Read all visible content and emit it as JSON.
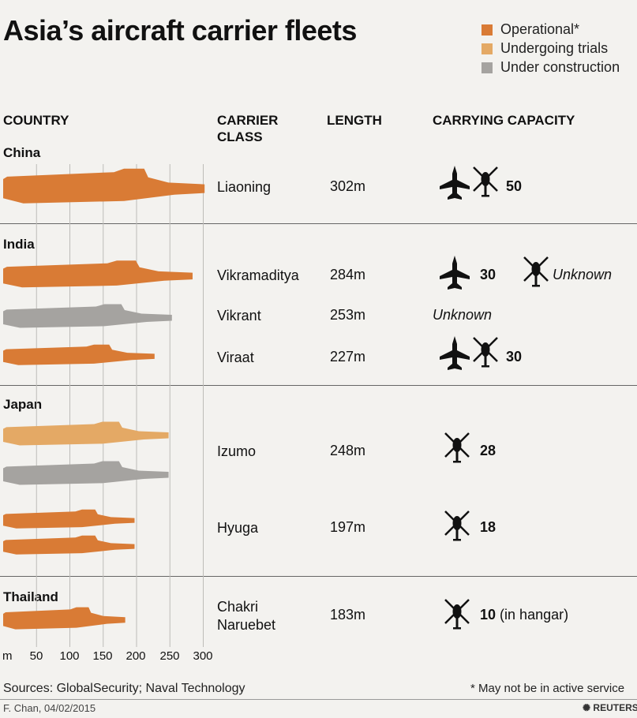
{
  "title": "Asia’s aircraft carrier fleets",
  "legend": [
    {
      "label": "Operational*",
      "color": "#d97b35"
    },
    {
      "label": "Undergoing trials",
      "color": "#e4a965"
    },
    {
      "label": "Under construction",
      "color": "#a5a3a0"
    }
  ],
  "headers": {
    "country": "COUNTRY",
    "carrier_class": "CARRIER CLASS",
    "length": "LENGTH",
    "capacity": "CARRYING CAPACITY"
  },
  "countries": [
    "China",
    "India",
    "Japan",
    "Thailand"
  ],
  "classes": {
    "liaoning": "Liaoning",
    "vikramaditya": "Vikramaditya",
    "vikrant": "Vikrant",
    "viraat": "Viraat",
    "izumo": "Izumo",
    "hyuga": "Hyuga",
    "chakri_line1": "Chakri",
    "chakri_line2": "Naruebet"
  },
  "lengths": {
    "liaoning": "302m",
    "vikramaditya": "284m",
    "vikrant": "253m",
    "viraat": "227m",
    "izumo": "248m",
    "hyuga": "197m",
    "chakri": "183m"
  },
  "capacity": {
    "liaoning": "50",
    "vikramaditya_planes": "30",
    "vikramaditya_helis": "Unknown",
    "vikrant": "Unknown",
    "viraat": "30",
    "izumo": "28",
    "hyuga": "18",
    "chakri": "10",
    "chakri_note": "(in hangar)"
  },
  "axis": {
    "unit": "m",
    "ticks": [
      "50",
      "100",
      "150",
      "200",
      "250",
      "300"
    ]
  },
  "chart_data": {
    "type": "bar",
    "orientation": "horizontal",
    "xlabel": "m",
    "xlim": [
      0,
      300
    ],
    "x_ticks": [
      50,
      100,
      150,
      200,
      250,
      300
    ],
    "bars": [
      {
        "country": "China",
        "carrier_class": "Liaoning",
        "length_m": 302,
        "status": "Operational*",
        "aircraft": 50,
        "color": "#d97b35"
      },
      {
        "country": "India",
        "carrier_class": "Vikramaditya",
        "length_m": 284,
        "status": "Operational*",
        "aircraft": 30,
        "helicopters": "Unknown",
        "color": "#d97b35"
      },
      {
        "country": "India",
        "carrier_class": "Vikrant",
        "length_m": 253,
        "status": "Under construction",
        "capacity": "Unknown",
        "color": "#a5a3a0"
      },
      {
        "country": "India",
        "carrier_class": "Viraat",
        "length_m": 227,
        "status": "Operational*",
        "aircraft": 30,
        "color": "#d97b35"
      },
      {
        "country": "Japan",
        "carrier_class": "Izumo",
        "length_m": 248,
        "status": "Undergoing trials",
        "helicopters": 28,
        "color": "#e4a965"
      },
      {
        "country": "Japan",
        "carrier_class": "Izumo",
        "length_m": 248,
        "status": "Under construction",
        "helicopters": 28,
        "color": "#a5a3a0"
      },
      {
        "country": "Japan",
        "carrier_class": "Hyuga",
        "length_m": 197,
        "status": "Operational*",
        "helicopters": 18,
        "color": "#d97b35"
      },
      {
        "country": "Japan",
        "carrier_class": "Hyuga",
        "length_m": 197,
        "status": "Operational*",
        "helicopters": 18,
        "color": "#d97b35"
      },
      {
        "country": "Thailand",
        "carrier_class": "Chakri Naruebet",
        "length_m": 183,
        "status": "Operational*",
        "helicopters": 10,
        "color": "#d97b35"
      }
    ]
  },
  "sources": "Sources: GlobalSecurity; Naval Technology",
  "footnote": "* May not be in active service",
  "credit": "F. Chan, 04/02/2015",
  "brand": "REUTERS"
}
